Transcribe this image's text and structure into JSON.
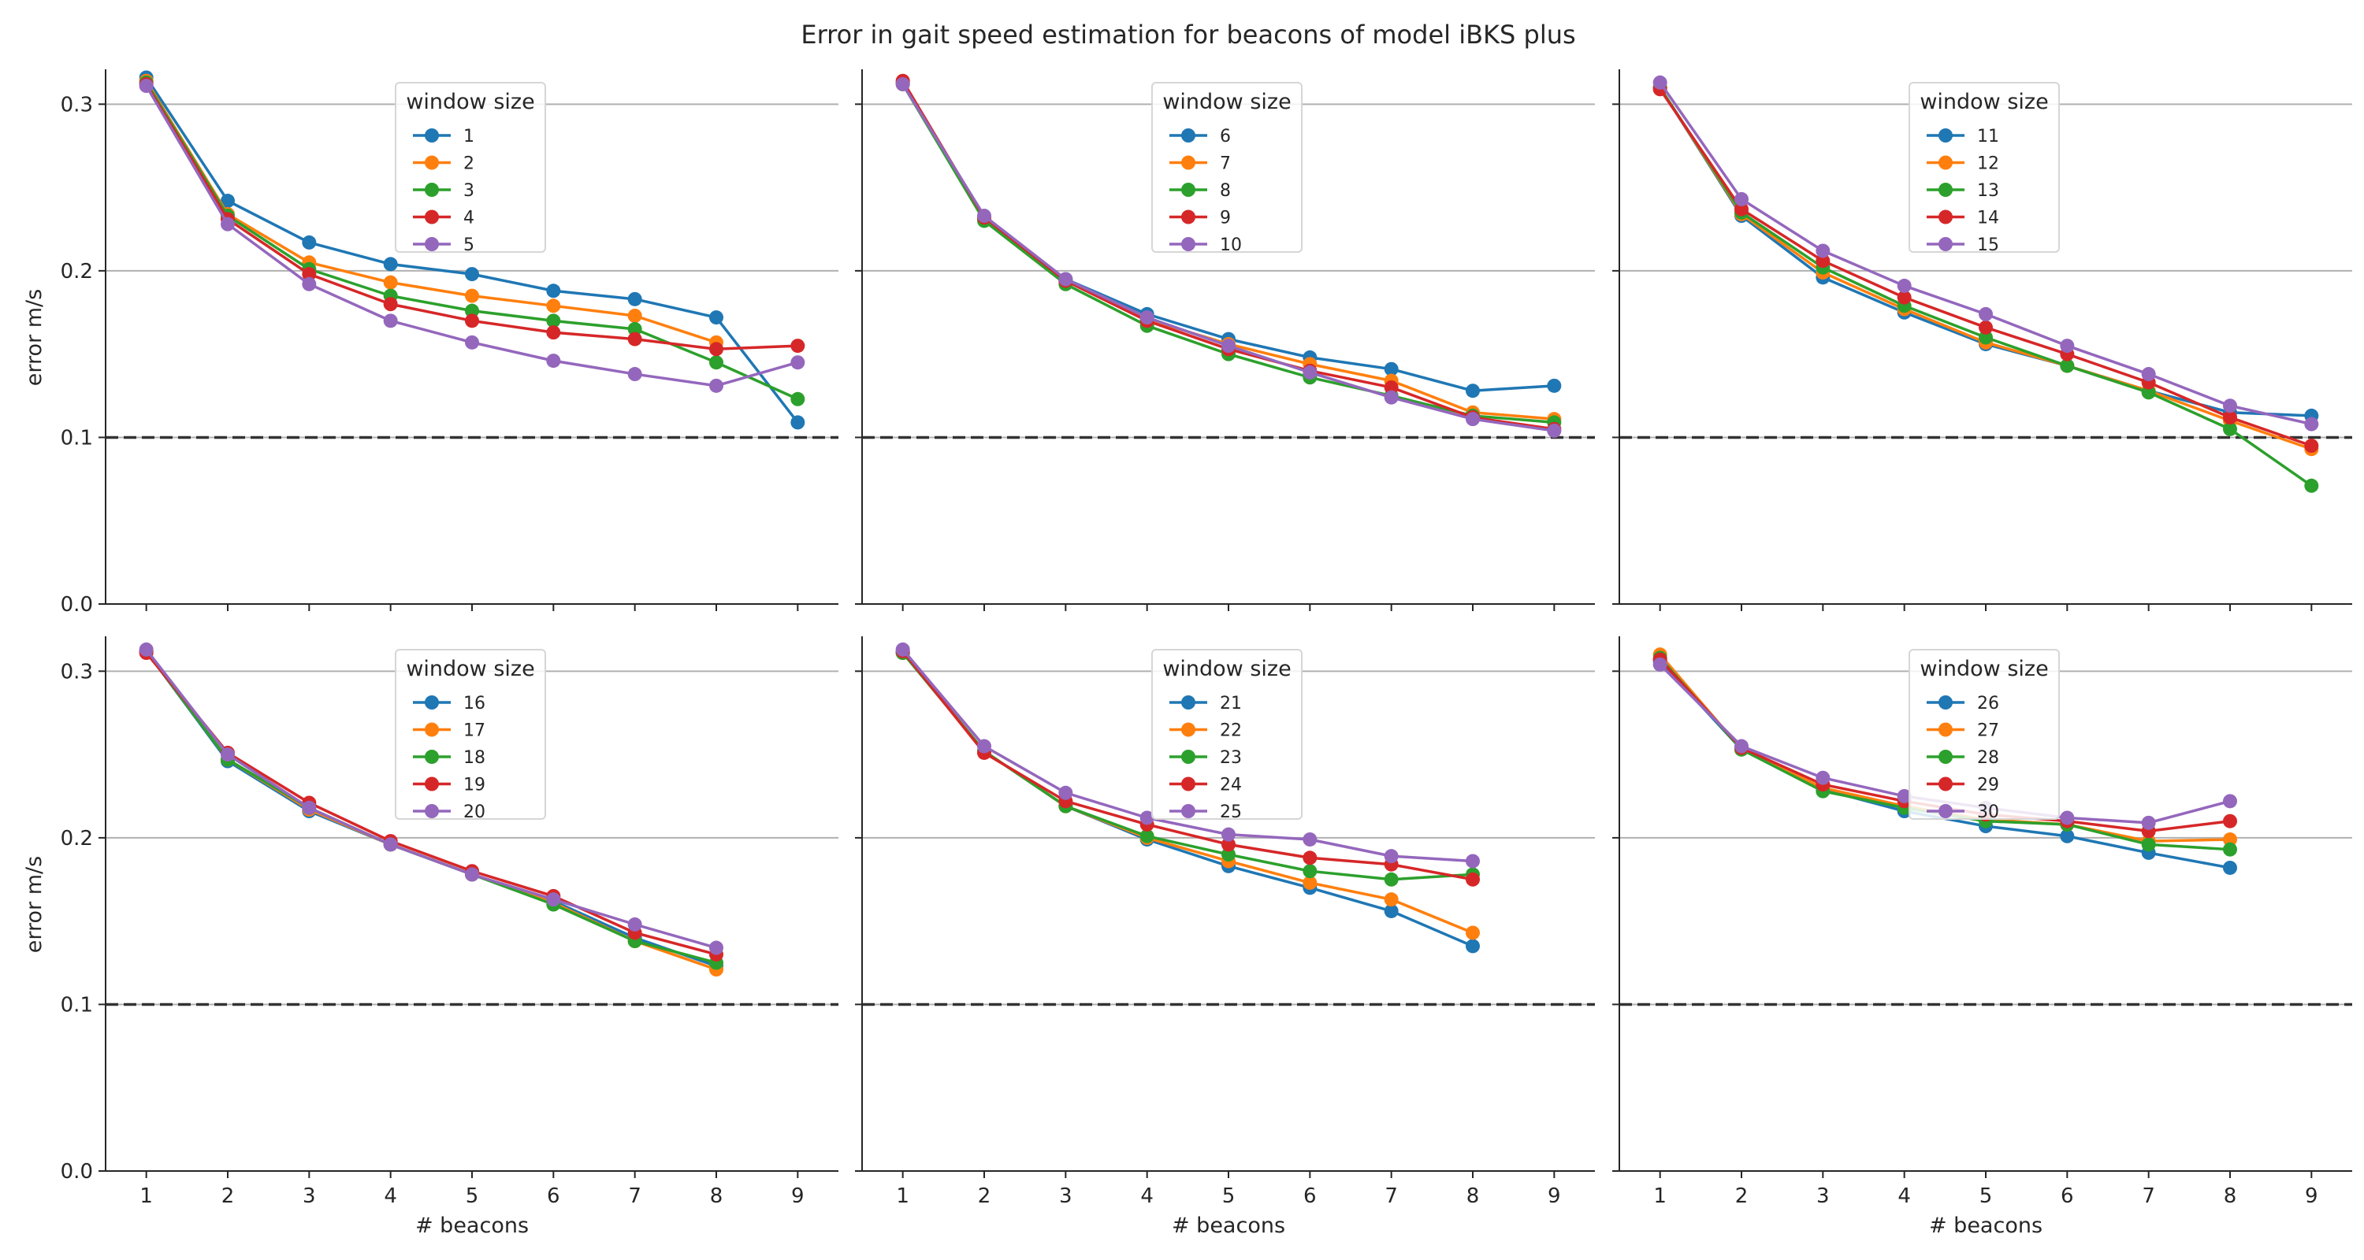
{
  "title": "Error in gait speed estimation for beacons of model iBKS plus",
  "colors": [
    "#1f77b4",
    "#ff7f0e",
    "#2ca02c",
    "#d62728",
    "#9467bd"
  ],
  "chart_data": [
    {
      "type": "line",
      "panel": "top-left",
      "xlabel": "",
      "ylabel": "error m/s",
      "x": [
        1,
        2,
        3,
        4,
        5,
        6,
        7,
        8,
        9
      ],
      "xlim": [
        0.5,
        9.5
      ],
      "ylim": [
        0,
        0.32
      ],
      "yticks": [
        "0.0",
        "0.1",
        "0.2",
        "0.3"
      ],
      "reference_line": 0.1,
      "legend_title": "window size",
      "series": [
        {
          "name": "1",
          "values": [
            0.316,
            0.242,
            0.217,
            0.204,
            0.198,
            0.188,
            0.183,
            0.172,
            0.109
          ]
        },
        {
          "name": "2",
          "values": [
            0.314,
            0.234,
            0.205,
            0.193,
            0.185,
            0.179,
            0.173,
            0.157,
            null
          ]
        },
        {
          "name": "3",
          "values": [
            0.313,
            0.233,
            0.201,
            0.185,
            0.176,
            0.17,
            0.165,
            0.145,
            0.123
          ]
        },
        {
          "name": "4",
          "values": [
            0.312,
            0.231,
            0.198,
            0.18,
            0.17,
            0.163,
            0.159,
            0.153,
            0.155
          ]
        },
        {
          "name": "5",
          "values": [
            0.311,
            0.228,
            0.192,
            0.17,
            0.157,
            0.146,
            0.138,
            0.131,
            0.145
          ]
        }
      ]
    },
    {
      "type": "line",
      "panel": "top-middle",
      "xlabel": "",
      "ylabel": "",
      "x": [
        1,
        2,
        3,
        4,
        5,
        6,
        7,
        8,
        9
      ],
      "xlim": [
        0.5,
        9.5
      ],
      "ylim": [
        0,
        0.32
      ],
      "reference_line": 0.1,
      "legend_title": "window size",
      "series": [
        {
          "name": "6",
          "values": [
            0.313,
            0.231,
            0.195,
            0.174,
            0.159,
            0.148,
            0.141,
            0.128,
            0.131
          ]
        },
        {
          "name": "7",
          "values": [
            0.313,
            0.231,
            0.194,
            0.171,
            0.156,
            0.144,
            0.134,
            0.115,
            0.111
          ]
        },
        {
          "name": "8",
          "values": [
            0.312,
            0.23,
            0.192,
            0.167,
            0.15,
            0.136,
            0.125,
            0.113,
            0.109
          ]
        },
        {
          "name": "9",
          "values": [
            0.314,
            0.232,
            0.194,
            0.17,
            0.153,
            0.14,
            0.13,
            0.112,
            0.105
          ]
        },
        {
          "name": "10",
          "values": [
            0.312,
            0.233,
            0.195,
            0.172,
            0.155,
            0.139,
            0.124,
            0.111,
            0.104
          ]
        }
      ]
    },
    {
      "type": "line",
      "panel": "top-right",
      "xlabel": "",
      "ylabel": "",
      "x": [
        1,
        2,
        3,
        4,
        5,
        6,
        7,
        8,
        9
      ],
      "xlim": [
        0.5,
        9.5
      ],
      "ylim": [
        0,
        0.32
      ],
      "reference_line": 0.1,
      "legend_title": "window size",
      "series": [
        {
          "name": "11",
          "values": [
            0.31,
            0.233,
            0.196,
            0.175,
            0.156,
            0.143,
            0.128,
            0.115,
            0.113
          ]
        },
        {
          "name": "12",
          "values": [
            0.31,
            0.234,
            0.199,
            0.177,
            0.157,
            0.143,
            0.128,
            0.11,
            0.093
          ]
        },
        {
          "name": "13",
          "values": [
            0.31,
            0.235,
            0.202,
            0.179,
            0.16,
            0.143,
            0.127,
            0.105,
            0.071
          ]
        },
        {
          "name": "14",
          "values": [
            0.309,
            0.237,
            0.206,
            0.184,
            0.166,
            0.15,
            0.133,
            0.112,
            0.095
          ]
        },
        {
          "name": "15",
          "values": [
            0.313,
            0.243,
            0.212,
            0.191,
            0.174,
            0.155,
            0.138,
            0.119,
            0.108
          ]
        }
      ]
    },
    {
      "type": "line",
      "panel": "bottom-left",
      "xlabel": "# beacons",
      "ylabel": "error m/s",
      "x": [
        1,
        2,
        3,
        4,
        5,
        6,
        7,
        8,
        9
      ],
      "xlim": [
        0.5,
        9.5
      ],
      "ylim": [
        0,
        0.32
      ],
      "yticks": [
        "0.0",
        "0.1",
        "0.2",
        "0.3"
      ],
      "reference_line": 0.1,
      "legend_title": "window size",
      "series": [
        {
          "name": "16",
          "values": [
            0.312,
            0.246,
            0.216,
            0.196,
            0.178,
            0.162,
            0.14,
            0.123,
            null
          ]
        },
        {
          "name": "17",
          "values": [
            0.312,
            0.247,
            0.217,
            0.196,
            0.178,
            0.161,
            0.138,
            0.121,
            null
          ]
        },
        {
          "name": "18",
          "values": [
            0.312,
            0.247,
            0.218,
            0.196,
            0.178,
            0.16,
            0.138,
            0.125,
            null
          ]
        },
        {
          "name": "19",
          "values": [
            0.311,
            0.251,
            0.221,
            0.198,
            0.18,
            0.165,
            0.143,
            0.13,
            null
          ]
        },
        {
          "name": "20",
          "values": [
            0.313,
            0.25,
            0.218,
            0.196,
            0.178,
            0.163,
            0.148,
            0.134,
            null
          ]
        }
      ]
    },
    {
      "type": "line",
      "panel": "bottom-middle",
      "xlabel": "# beacons",
      "ylabel": "",
      "x": [
        1,
        2,
        3,
        4,
        5,
        6,
        7,
        8,
        9
      ],
      "xlim": [
        0.5,
        9.5
      ],
      "ylim": [
        0,
        0.32
      ],
      "reference_line": 0.1,
      "legend_title": "window size",
      "series": [
        {
          "name": "21",
          "values": [
            0.311,
            0.252,
            0.219,
            0.199,
            0.183,
            0.17,
            0.156,
            0.135,
            null
          ]
        },
        {
          "name": "22",
          "values": [
            0.311,
            0.252,
            0.219,
            0.2,
            0.186,
            0.173,
            0.163,
            0.143,
            null
          ]
        },
        {
          "name": "23",
          "values": [
            0.311,
            0.252,
            0.219,
            0.201,
            0.19,
            0.18,
            0.175,
            0.178,
            null
          ]
        },
        {
          "name": "24",
          "values": [
            0.312,
            0.251,
            0.222,
            0.208,
            0.196,
            0.188,
            0.184,
            0.175,
            null
          ]
        },
        {
          "name": "25",
          "values": [
            0.313,
            0.255,
            0.227,
            0.212,
            0.202,
            0.199,
            0.189,
            0.186,
            null
          ]
        }
      ]
    },
    {
      "type": "line",
      "panel": "bottom-right",
      "xlabel": "# beacons",
      "ylabel": "",
      "x": [
        1,
        2,
        3,
        4,
        5,
        6,
        7,
        8,
        9
      ],
      "xlim": [
        0.5,
        9.5
      ],
      "ylim": [
        0,
        0.32
      ],
      "reference_line": 0.1,
      "legend_title": "window size",
      "series": [
        {
          "name": "26",
          "values": [
            0.306,
            0.253,
            0.229,
            0.216,
            0.207,
            0.201,
            0.191,
            0.182,
            null
          ]
        },
        {
          "name": "27",
          "values": [
            0.31,
            0.253,
            0.23,
            0.219,
            0.211,
            0.208,
            0.198,
            0.199,
            null
          ]
        },
        {
          "name": "28",
          "values": [
            0.308,
            0.253,
            0.228,
            0.218,
            0.21,
            0.208,
            0.196,
            0.193,
            null
          ]
        },
        {
          "name": "29",
          "values": [
            0.307,
            0.254,
            0.232,
            0.222,
            0.214,
            0.21,
            0.204,
            0.21,
            null
          ]
        },
        {
          "name": "30",
          "values": [
            0.304,
            0.255,
            0.236,
            0.225,
            0.218,
            0.212,
            0.209,
            0.222,
            null
          ]
        }
      ]
    }
  ]
}
